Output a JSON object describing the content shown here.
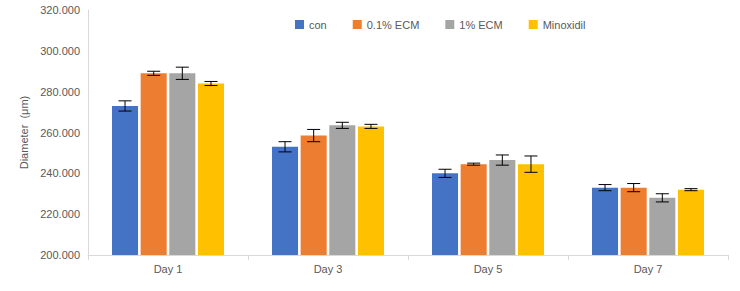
{
  "chart_data": {
    "type": "bar",
    "y_label": "Diameter  (μm)",
    "categories": [
      "Day 1",
      "Day 3",
      "Day 5",
      "Day 7"
    ],
    "series": [
      {
        "name": "con",
        "color": "#4472c4",
        "values": [
          273,
          253,
          240,
          233
        ],
        "errors": [
          2.5,
          2.5,
          2,
          1.5
        ]
      },
      {
        "name": "0.1% ECM",
        "color": "#ed7d31",
        "values": [
          289,
          258.5,
          244.5,
          233
        ],
        "errors": [
          1,
          3,
          0.5,
          2
        ]
      },
      {
        "name": "1% ECM",
        "color": "#a5a5a5",
        "values": [
          289,
          263.5,
          246.5,
          228
        ],
        "errors": [
          3,
          1.5,
          2.5,
          2
        ]
      },
      {
        "name": "Minoxidil",
        "color": "#ffc000",
        "values": [
          284,
          263,
          244.5,
          232
        ],
        "errors": [
          1,
          1,
          4,
          0.5
        ]
      }
    ],
    "ylim": [
      200,
      320
    ],
    "yticks": [
      {
        "value": 200,
        "label": "200.000"
      },
      {
        "value": 220,
        "label": "220.000"
      },
      {
        "value": 240,
        "label": "240.000"
      },
      {
        "value": 260,
        "label": "260.000"
      },
      {
        "value": 280,
        "label": "280.000"
      },
      {
        "value": 300,
        "label": "300.000"
      },
      {
        "value": 320,
        "label": "320.000"
      }
    ],
    "grid": false,
    "legend": "top"
  }
}
